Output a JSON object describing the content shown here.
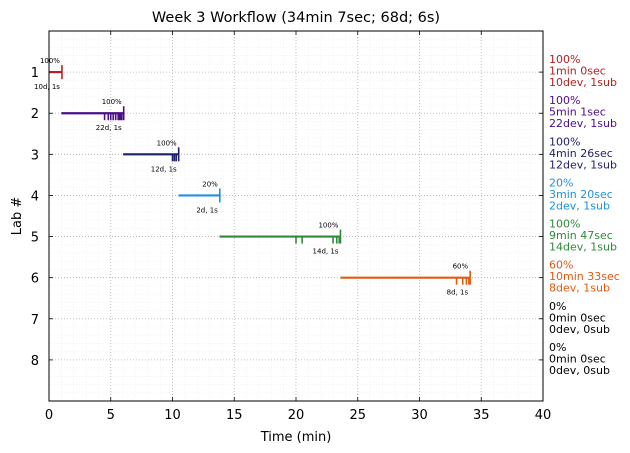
{
  "chart_data": {
    "type": "timeline",
    "title": "Week 3 Workflow (34min 7sec; 68d; 6s)",
    "xlabel": "Time (min)",
    "ylabel": "Lab #",
    "xlim": [
      0,
      40
    ],
    "xticks": [
      0,
      5,
      10,
      15,
      20,
      25,
      30,
      35,
      40
    ],
    "ylim": [
      0,
      9
    ],
    "yticks": [
      1,
      2,
      3,
      4,
      5,
      6,
      7,
      8
    ],
    "grid": true,
    "labs": [
      {
        "lab": 1,
        "color": "#b22222",
        "start": 0.0,
        "end": 1.05,
        "submit": 1.05,
        "devs": [],
        "pct_label": "100%",
        "count_label": "10d, 1s",
        "summary": [
          "100%",
          "1min 0sec",
          "10dev, 1sub"
        ]
      },
      {
        "lab": 2,
        "color": "#4b0f8a",
        "start": 1.0,
        "end": 6.05,
        "submit": 6.05,
        "devs": [
          4.5,
          4.8,
          5.0,
          5.2,
          5.4,
          5.6,
          5.7,
          5.8,
          5.9
        ],
        "pct_label": "100%",
        "count_label": "22d, 1s",
        "summary": [
          "100%",
          "5min 1sec",
          "22dev, 1sub"
        ]
      },
      {
        "lab": 3,
        "color": "#1a1f6e",
        "start": 6.0,
        "end": 10.5,
        "submit": 10.5,
        "devs": [
          10.0,
          10.15,
          10.3
        ],
        "pct_label": "100%",
        "count_label": "12d, 1s",
        "summary": [
          "100%",
          "4min 26sec",
          "12dev, 1sub"
        ]
      },
      {
        "lab": 4,
        "color": "#2090e0",
        "start": 10.5,
        "end": 13.83,
        "submit": 13.83,
        "devs": [],
        "pct_label": "20%",
        "count_label": "2d, 1s",
        "summary": [
          "20%",
          "3min 20sec",
          "2dev, 1sub"
        ]
      },
      {
        "lab": 5,
        "color": "#2e8b3a",
        "start": 13.8,
        "end": 23.6,
        "submit": 23.6,
        "devs": [
          20.0,
          20.5,
          23.0,
          23.3,
          23.5
        ],
        "pct_label": "100%",
        "count_label": "14d, 1s",
        "summary": [
          "100%",
          "9min 47sec",
          "14dev, 1sub"
        ]
      },
      {
        "lab": 6,
        "color": "#e05a10",
        "start": 23.6,
        "end": 34.1,
        "submit": 34.1,
        "devs": [
          33.0,
          33.5,
          33.8,
          34.0
        ],
        "pct_label": "60%",
        "count_label": "8d, 1s",
        "summary": [
          "60%",
          "10min 33sec",
          "8dev, 1sub"
        ]
      },
      {
        "lab": 7,
        "color": "#000000",
        "summary": [
          "0%",
          "0min 0sec",
          "0dev, 0sub"
        ]
      },
      {
        "lab": 8,
        "color": "#000000",
        "summary": [
          "0%",
          "0min 0sec",
          "0dev, 0sub"
        ]
      }
    ]
  }
}
